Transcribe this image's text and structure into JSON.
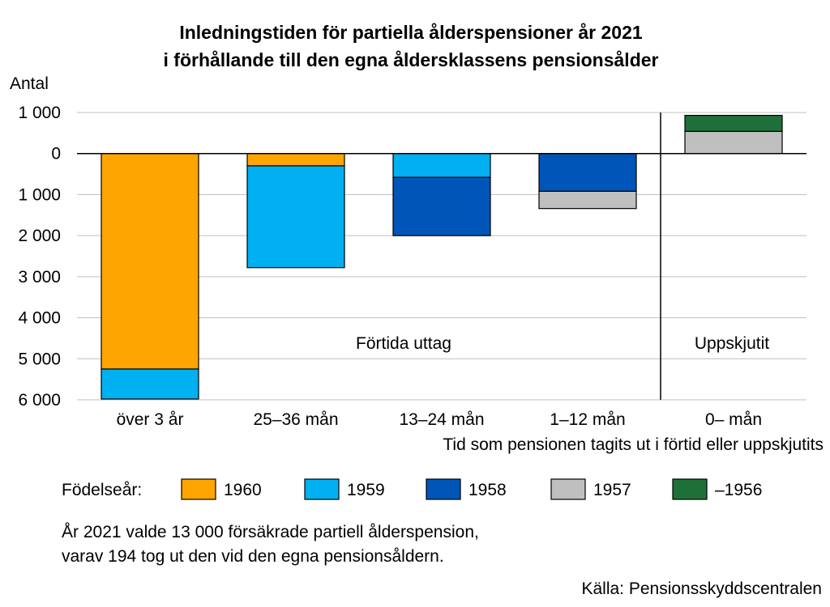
{
  "chart_data": {
    "type": "bar",
    "stacked": true,
    "title": "Inledningstiden för partiella ålderspensioner år 2021",
    "subtitle": "i förhållande till den egna åldersklassens pensionsålder",
    "ylabel": "Antal",
    "xlabel": "Tid som pensionen tagits ut i förtid eller uppskjutits",
    "ylim": [
      -6000,
      1000
    ],
    "yticks": [
      {
        "value": 1000,
        "label": "1 000"
      },
      {
        "value": 0,
        "label": "0"
      },
      {
        "value": -1000,
        "label": "1 000"
      },
      {
        "value": -2000,
        "label": "2 000"
      },
      {
        "value": -3000,
        "label": "3 000"
      },
      {
        "value": -4000,
        "label": "4 000"
      },
      {
        "value": -5000,
        "label": "5 000"
      },
      {
        "value": -6000,
        "label": "6 000"
      }
    ],
    "grid": true,
    "categories": [
      "över 3 år",
      "25–36 mån",
      "13–24 mån",
      "1–12 mån",
      "0– mån"
    ],
    "series": [
      {
        "name": "1960",
        "color": "#FFA500",
        "values": [
          -5250,
          -300,
          0,
          0,
          0
        ]
      },
      {
        "name": "1959",
        "color": "#00B0F0",
        "values": [
          -730,
          -2480,
          -580,
          0,
          0
        ]
      },
      {
        "name": "1958",
        "color": "#0055B8",
        "values": [
          0,
          0,
          -1420,
          -920,
          0
        ]
      },
      {
        "name": "1957",
        "color": "#BFBFBF",
        "values": [
          0,
          0,
          0,
          -420,
          540
        ]
      },
      {
        "name": "–1956",
        "color": "#1E7038",
        "values": [
          0,
          0,
          0,
          0,
          390
        ]
      }
    ],
    "group_labels": [
      "Förtida uttag",
      "Uppskjutit"
    ],
    "legend_title": "Födelseår:",
    "legend_position": "bottom"
  },
  "note": {
    "line1": "År 2021 valde 13 000 försäkrade partiell ålderspension,",
    "line2": "varav 194 tog ut den vid den egna pensionsåldern."
  },
  "source": "Källa: Pensionsskyddscentralen"
}
